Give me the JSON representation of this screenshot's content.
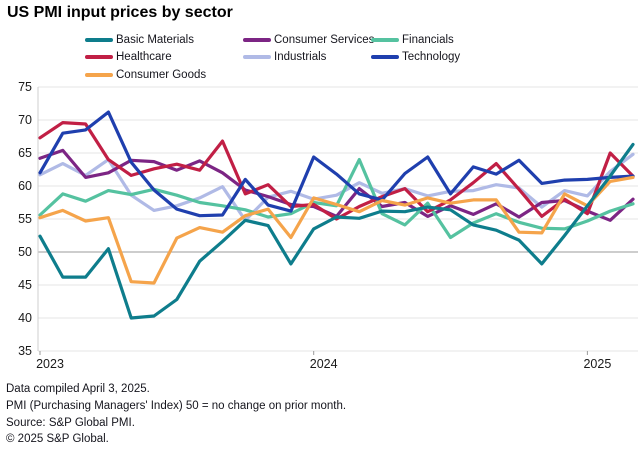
{
  "header": {
    "title": "US PMI input prices by sector"
  },
  "legend": [
    {
      "label": "Basic Materials",
      "color": "#0e7d8c"
    },
    {
      "label": "Consumer Services",
      "color": "#7c2584"
    },
    {
      "label": "Financials",
      "color": "#55c2a0"
    },
    {
      "label": "Healthcare",
      "color": "#c11f45"
    },
    {
      "label": "Industrials",
      "color": "#b0bae6"
    },
    {
      "label": "Technology",
      "color": "#1f3fae"
    },
    {
      "label": "Consumer Goods",
      "color": "#f5a44b"
    }
  ],
  "chart_data": {
    "type": "line",
    "title": "US PMI input prices by sector",
    "x": [
      "Jan 2023",
      "Feb 2023",
      "Mar 2023",
      "Apr 2023",
      "May 2023",
      "Jun 2023",
      "Jul 2023",
      "Aug 2023",
      "Sep 2023",
      "Oct 2023",
      "Nov 2023",
      "Dec 2023",
      "Jan 2024",
      "Feb 2024",
      "Mar 2024",
      "Apr 2024",
      "May 2024",
      "Jun 2024",
      "Jul 2024",
      "Aug 2024",
      "Sep 2024",
      "Oct 2024",
      "Nov 2024",
      "Dec 2024",
      "Jan 2025",
      "Feb 2025",
      "Mar 2025"
    ],
    "x_year_ticks": [
      {
        "index": 0,
        "label": "2023"
      },
      {
        "index": 12,
        "label": "2024"
      },
      {
        "index": 24,
        "label": "2025"
      }
    ],
    "ylim": [
      35,
      75
    ],
    "y_ticks": [
      35,
      40,
      45,
      50,
      55,
      60,
      65,
      70,
      75
    ],
    "reference_gridline": 50,
    "grid": true,
    "legend_position": "top",
    "series": [
      {
        "name": "Basic Materials",
        "color": "#0e7d8c",
        "values": [
          52.4,
          46.2,
          46.2,
          50.5,
          40.0,
          40.3,
          42.8,
          48.6,
          51.6,
          54.8,
          54.0,
          48.2,
          53.5,
          55.3,
          55.1,
          56.2,
          56.1,
          56.8,
          56.4,
          54.1,
          53.3,
          51.8,
          48.2,
          52.5,
          57.0,
          61.5,
          66.3
        ]
      },
      {
        "name": "Consumer Services",
        "color": "#7c2584",
        "values": [
          64.2,
          65.4,
          61.3,
          62.0,
          63.9,
          63.7,
          62.4,
          63.8,
          62.0,
          59.4,
          58.4,
          57.2,
          56.9,
          55.4,
          59.6,
          56.9,
          57.5,
          55.4,
          57.0,
          55.7,
          57.3,
          55.3,
          57.5,
          57.8,
          56.2,
          54.8,
          58.0
        ]
      },
      {
        "name": "Financials",
        "color": "#55c2a0",
        "values": [
          55.6,
          58.8,
          57.7,
          59.3,
          58.7,
          59.5,
          58.6,
          57.5,
          57.0,
          56.4,
          55.3,
          55.8,
          57.5,
          57.0,
          64.0,
          55.8,
          54.1,
          57.4,
          52.2,
          54.4,
          55.8,
          54.5,
          53.6,
          53.5,
          54.7,
          56.2,
          57.3
        ]
      },
      {
        "name": "Healthcare",
        "color": "#c11f45",
        "values": [
          67.3,
          69.6,
          69.4,
          64.0,
          61.6,
          62.6,
          63.3,
          62.4,
          66.8,
          58.8,
          60.2,
          56.9,
          57.2,
          55.0,
          56.9,
          58.4,
          59.6,
          56.1,
          57.9,
          60.5,
          63.4,
          59.5,
          55.4,
          58.0,
          55.8,
          65.0,
          61.5
        ]
      },
      {
        "name": "Industrials",
        "color": "#b0bae6",
        "values": [
          61.7,
          63.4,
          61.6,
          64.0,
          58.6,
          56.3,
          57.0,
          58.2,
          59.9,
          54.8,
          58.3,
          59.2,
          58.0,
          58.6,
          60.5,
          58.9,
          59.6,
          58.5,
          59.2,
          59.3,
          60.2,
          59.7,
          56.8,
          59.3,
          58.5,
          62.2,
          64.8
        ]
      },
      {
        "name": "Technology",
        "color": "#1f3fae",
        "values": [
          62.0,
          68.0,
          68.5,
          71.2,
          63.6,
          59.4,
          56.5,
          55.5,
          55.6,
          61.0,
          57.1,
          56.2,
          64.4,
          61.8,
          58.8,
          57.9,
          61.9,
          64.4,
          58.8,
          62.9,
          61.8,
          63.9,
          60.4,
          60.9,
          61.0,
          61.3,
          61.5
        ]
      },
      {
        "name": "Consumer Goods",
        "color": "#f5a44b",
        "values": [
          55.2,
          56.3,
          54.7,
          55.2,
          45.5,
          45.3,
          52.1,
          53.7,
          53.0,
          55.5,
          56.5,
          52.2,
          58.2,
          57.2,
          56.1,
          57.8,
          57.1,
          58.2,
          57.4,
          57.9,
          57.9,
          53.0,
          52.9,
          58.8,
          57.0,
          60.7,
          61.3
        ]
      }
    ],
    "draw_order": [
      "Industrials",
      "Consumer Services",
      "Financials",
      "Healthcare",
      "Technology",
      "Consumer Goods",
      "Basic Materials"
    ]
  },
  "footer": {
    "line1": "Data compiled April 3, 2025.",
    "line2": "PMI (Purchasing Managers' Index) 50 =  no change on prior month.",
    "line3": "Source: S&P Global PMI.",
    "line4": "© 2025 S&P Global."
  }
}
